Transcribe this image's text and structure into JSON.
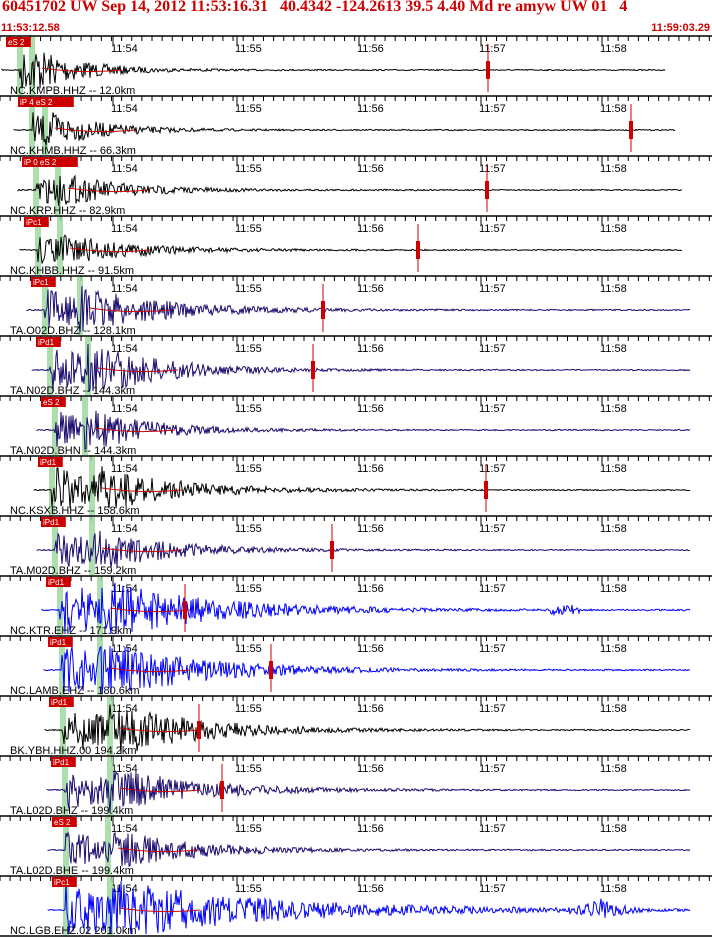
{
  "header": {
    "title": "60451702 UW Sep 14, 2012 11:53:16.31   40.4342 -124.2613 39.5 4.40 Md re amyw UW 01   4",
    "start_time": "11:53:12.58",
    "end_time": "11:59:03.29"
  },
  "time_ticks": [
    "11:54",
    "11:55",
    "11:56",
    "11:57",
    "11:58"
  ],
  "colors": {
    "accent": "#cc0000",
    "trace_black": "#000000",
    "trace_navy": "#1a0a6e",
    "trace_blue": "#0000ff",
    "pick_green": "#9fd89f"
  },
  "traces": [
    {
      "label": "NC.KMPB.HHZ -- 12.0km",
      "pick": "eS 2"
    },
    {
      "label": "NC.KHMB.HHZ -- 66.3km",
      "pick": "iP 4 eS 2"
    },
    {
      "label": "NC.KRP.HHZ -- 82.9km",
      "pick": "iP 0 eS 2"
    },
    {
      "label": "NC.KHBB.HHZ -- 91.5km",
      "pick": "iPc1"
    },
    {
      "label": "TA.O02D.BHZ -- 128.1km",
      "pick": "iPc1"
    },
    {
      "label": "TA.N02D.BHZ -- 144.3km",
      "pick": "iPd1"
    },
    {
      "label": "TA.N02D.BHN -- 144.3km",
      "pick": "eS 2"
    },
    {
      "label": "NC.KSXB.HHZ -- 158.6km",
      "pick": "iPd1"
    },
    {
      "label": "TA.M02D.BHZ -- 159.2km",
      "pick": "iPd1"
    },
    {
      "label": "NC.KTR.EHZ -- 171.9km",
      "pick": "iPd1"
    },
    {
      "label": "NC.LAMB.EHZ -- 180.6km",
      "pick": "iPd1"
    },
    {
      "label": "BK.YBH.HHZ.00 194.2km",
      "pick": "iPd1"
    },
    {
      "label": "TA.L02D.BHZ -- 199.4km",
      "pick": "iPd1"
    },
    {
      "label": "TA.L02D.BHE -- 199.4km",
      "pick": "eS 2"
    },
    {
      "label": "NC.LGB.EHZ.02 201.0km",
      "pick": "iPc1"
    }
  ]
}
